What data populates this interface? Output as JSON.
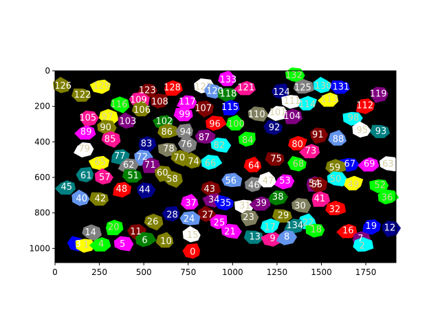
{
  "chart_data": {
    "type": "heatmap",
    "title": "",
    "xlabel": "",
    "ylabel": "",
    "xlim": [
      0,
      1920
    ],
    "ylim": [
      1080,
      0
    ],
    "xticks": [
      0,
      250,
      500,
      750,
      1000,
      1250,
      1500,
      1750
    ],
    "yticks": [
      0,
      200,
      400,
      600,
      800,
      1000
    ],
    "background": "#000000",
    "description_type": "segmentation label map",
    "regions": [
      {
        "label": "126",
        "x": 45,
        "y": 85,
        "color": "#808000"
      },
      {
        "label": "122",
        "x": 155,
        "y": 135,
        "color": "#808000"
      },
      {
        "label": "129",
        "x": 262,
        "y": 85,
        "color": "#ffff00"
      },
      {
        "label": "123",
        "x": 520,
        "y": 110,
        "color": "#800000"
      },
      {
        "label": "128",
        "x": 660,
        "y": 95,
        "color": "#ff0000"
      },
      {
        "label": "127",
        "x": 835,
        "y": 90,
        "color": "#ffffff"
      },
      {
        "label": "133",
        "x": 975,
        "y": 50,
        "color": "#ff00ff"
      },
      {
        "label": "120",
        "x": 900,
        "y": 115,
        "color": "#6495ed"
      },
      {
        "label": "118",
        "x": 975,
        "y": 130,
        "color": "#008000"
      },
      {
        "label": "121",
        "x": 1075,
        "y": 95,
        "color": "#ff1493"
      },
      {
        "label": "132",
        "x": 1345,
        "y": 25,
        "color": "#00ff00"
      },
      {
        "label": "125",
        "x": 1395,
        "y": 95,
        "color": "#808080"
      },
      {
        "label": "124",
        "x": 1275,
        "y": 120,
        "color": "#00008b"
      },
      {
        "label": "130",
        "x": 1510,
        "y": 85,
        "color": "#00ffff"
      },
      {
        "label": "131",
        "x": 1610,
        "y": 90,
        "color": "#0000ff"
      },
      {
        "label": "119",
        "x": 1820,
        "y": 130,
        "color": "#800080"
      },
      {
        "label": "116",
        "x": 360,
        "y": 190,
        "color": "#00ff00"
      },
      {
        "label": "109",
        "x": 470,
        "y": 165,
        "color": "#ff1493"
      },
      {
        "label": "108",
        "x": 590,
        "y": 175,
        "color": "#800000"
      },
      {
        "label": "106",
        "x": 490,
        "y": 220,
        "color": "#808000"
      },
      {
        "label": "117",
        "x": 745,
        "y": 175,
        "color": "#ff00ff"
      },
      {
        "label": "115",
        "x": 985,
        "y": 205,
        "color": "#0000ff"
      },
      {
        "label": "107",
        "x": 835,
        "y": 210,
        "color": "#800000"
      },
      {
        "label": "110",
        "x": 1135,
        "y": 245,
        "color": "#808060"
      },
      {
        "label": "114",
        "x": 1420,
        "y": 190,
        "color": "#00ffff"
      },
      {
        "label": "111",
        "x": 1335,
        "y": 170,
        "color": "#ffffff"
      },
      {
        "label": "113",
        "x": 1545,
        "y": 160,
        "color": "#ffff00"
      },
      {
        "label": "112",
        "x": 1745,
        "y": 195,
        "color": "#ff0000"
      },
      {
        "label": "105",
        "x": 185,
        "y": 265,
        "color": "#ff1493"
      },
      {
        "label": "97",
        "x": 295,
        "y": 260,
        "color": "#ffff00"
      },
      {
        "label": "103",
        "x": 410,
        "y": 285,
        "color": "#800080"
      },
      {
        "label": "99",
        "x": 730,
        "y": 245,
        "color": "#ff00ff"
      },
      {
        "label": "102",
        "x": 615,
        "y": 285,
        "color": "#008000"
      },
      {
        "label": "101",
        "x": 1255,
        "y": 235,
        "color": "#ffffff"
      },
      {
        "label": "104",
        "x": 1335,
        "y": 255,
        "color": "#800080"
      },
      {
        "label": "96",
        "x": 900,
        "y": 300,
        "color": "#ff0000"
      },
      {
        "label": "100",
        "x": 1020,
        "y": 300,
        "color": "#00ff00"
      },
      {
        "label": "92",
        "x": 1235,
        "y": 320,
        "color": "#000080"
      },
      {
        "label": "98",
        "x": 1680,
        "y": 265,
        "color": "#00ffff"
      },
      {
        "label": "89",
        "x": 175,
        "y": 345,
        "color": "#ff00ff"
      },
      {
        "label": "90",
        "x": 285,
        "y": 320,
        "color": "#808000"
      },
      {
        "label": "86",
        "x": 630,
        "y": 345,
        "color": "#808000"
      },
      {
        "label": "94",
        "x": 735,
        "y": 345,
        "color": "#808080"
      },
      {
        "label": "95",
        "x": 1730,
        "y": 335,
        "color": "#ffffff"
      },
      {
        "label": "93",
        "x": 1835,
        "y": 340,
        "color": "#008080"
      },
      {
        "label": "91",
        "x": 1480,
        "y": 360,
        "color": "#800000"
      },
      {
        "label": "85",
        "x": 310,
        "y": 385,
        "color": "#ff1493"
      },
      {
        "label": "87",
        "x": 840,
        "y": 375,
        "color": "#800080"
      },
      {
        "label": "84",
        "x": 1085,
        "y": 390,
        "color": "#00ff00"
      },
      {
        "label": "88",
        "x": 1595,
        "y": 385,
        "color": "#6495ed"
      },
      {
        "label": "79",
        "x": 165,
        "y": 440,
        "color": "#ffffff"
      },
      {
        "label": "83",
        "x": 515,
        "y": 410,
        "color": "#00008b"
      },
      {
        "label": "76",
        "x": 740,
        "y": 415,
        "color": "#808080"
      },
      {
        "label": "82",
        "x": 925,
        "y": 420,
        "color": "#00ffff"
      },
      {
        "label": "80",
        "x": 1365,
        "y": 415,
        "color": "#ff0000"
      },
      {
        "label": "78",
        "x": 640,
        "y": 440,
        "color": "#808060"
      },
      {
        "label": "73",
        "x": 1440,
        "y": 450,
        "color": "#ff1493"
      },
      {
        "label": "77",
        "x": 365,
        "y": 480,
        "color": "#008080"
      },
      {
        "label": "72",
        "x": 490,
        "y": 485,
        "color": "#6495ed"
      },
      {
        "label": "70",
        "x": 700,
        "y": 490,
        "color": "#808000"
      },
      {
        "label": "74",
        "x": 780,
        "y": 510,
        "color": "#808000"
      },
      {
        "label": "75",
        "x": 1245,
        "y": 495,
        "color": "#800000"
      },
      {
        "label": "65",
        "x": 255,
        "y": 515,
        "color": "#ffff00"
      },
      {
        "label": "62",
        "x": 415,
        "y": 530,
        "color": "#808080"
      },
      {
        "label": "71",
        "x": 535,
        "y": 530,
        "color": "#800080"
      },
      {
        "label": "66",
        "x": 875,
        "y": 520,
        "color": "#00ffff"
      },
      {
        "label": "64",
        "x": 1120,
        "y": 535,
        "color": "#ff0000"
      },
      {
        "label": "68",
        "x": 1370,
        "y": 525,
        "color": "#00ff00"
      },
      {
        "label": "67",
        "x": 1660,
        "y": 525,
        "color": "#0000ff"
      },
      {
        "label": "69",
        "x": 1770,
        "y": 525,
        "color": "#ff00ff"
      },
      {
        "label": "63",
        "x": 1875,
        "y": 525,
        "color": "#ffffff"
      },
      {
        "label": "59",
        "x": 1575,
        "y": 545,
        "color": "#808000"
      },
      {
        "label": "61",
        "x": 175,
        "y": 590,
        "color": "#008080"
      },
      {
        "label": "57",
        "x": 280,
        "y": 600,
        "color": "#ff1493"
      },
      {
        "label": "51",
        "x": 440,
        "y": 590,
        "color": "#008000"
      },
      {
        "label": "60",
        "x": 605,
        "y": 575,
        "color": "#808000"
      },
      {
        "label": "58",
        "x": 660,
        "y": 610,
        "color": "#808000"
      },
      {
        "label": "56",
        "x": 990,
        "y": 620,
        "color": "#6495ed"
      },
      {
        "label": "46",
        "x": 1120,
        "y": 645,
        "color": "#808080"
      },
      {
        "label": "47",
        "x": 1200,
        "y": 620,
        "color": "#ffffff"
      },
      {
        "label": "53",
        "x": 1295,
        "y": 620,
        "color": "#ff00ff"
      },
      {
        "label": "54",
        "x": 1460,
        "y": 635,
        "color": "#800080"
      },
      {
        "label": "55",
        "x": 1475,
        "y": 640,
        "color": "#800000"
      },
      {
        "label": "50",
        "x": 1580,
        "y": 610,
        "color": "#00ffff"
      },
      {
        "label": "49",
        "x": 1680,
        "y": 640,
        "color": "#ffff00"
      },
      {
        "label": "52",
        "x": 1830,
        "y": 645,
        "color": "#00ff00"
      },
      {
        "label": "45",
        "x": 65,
        "y": 655,
        "color": "#008080"
      },
      {
        "label": "48",
        "x": 375,
        "y": 665,
        "color": "#ff0000"
      },
      {
        "label": "44",
        "x": 505,
        "y": 670,
        "color": "#00008b"
      },
      {
        "label": "43",
        "x": 870,
        "y": 665,
        "color": "#800000"
      },
      {
        "label": "40",
        "x": 150,
        "y": 720,
        "color": "#6495ed"
      },
      {
        "label": "42",
        "x": 255,
        "y": 720,
        "color": "#808000"
      },
      {
        "label": "34",
        "x": 895,
        "y": 725,
        "color": "#800080"
      },
      {
        "label": "38",
        "x": 1255,
        "y": 710,
        "color": "#008000"
      },
      {
        "label": "41",
        "x": 1490,
        "y": 720,
        "color": "#ff1493"
      },
      {
        "label": "36",
        "x": 1870,
        "y": 715,
        "color": "#00ff00"
      },
      {
        "label": "37",
        "x": 765,
        "y": 745,
        "color": "#ff00ff"
      },
      {
        "label": "35",
        "x": 960,
        "y": 745,
        "color": "#0000ff"
      },
      {
        "label": "31",
        "x": 1070,
        "y": 760,
        "color": "#ffffff"
      },
      {
        "label": "39",
        "x": 1160,
        "y": 745,
        "color": "#800080"
      },
      {
        "label": "30",
        "x": 1380,
        "y": 760,
        "color": "#808060"
      },
      {
        "label": "32",
        "x": 1575,
        "y": 780,
        "color": "#ff0000"
      },
      {
        "label": "28",
        "x": 660,
        "y": 810,
        "color": "#00008b"
      },
      {
        "label": "27",
        "x": 860,
        "y": 810,
        "color": "#800000"
      },
      {
        "label": "29",
        "x": 1285,
        "y": 815,
        "color": "#808000"
      },
      {
        "label": "23",
        "x": 1090,
        "y": 825,
        "color": "#808060"
      },
      {
        "label": "26",
        "x": 550,
        "y": 850,
        "color": "#808000"
      },
      {
        "label": "24",
        "x": 755,
        "y": 835,
        "color": "#6495ed"
      },
      {
        "label": "25",
        "x": 925,
        "y": 855,
        "color": "#ff00ff"
      },
      {
        "label": "22",
        "x": 1425,
        "y": 855,
        "color": "#00ffff"
      },
      {
        "label": "134",
        "x": 1350,
        "y": 870,
        "color": "#008080"
      },
      {
        "label": "20",
        "x": 330,
        "y": 880,
        "color": "#00ff00"
      },
      {
        "label": "11",
        "x": 455,
        "y": 905,
        "color": "#800000"
      },
      {
        "label": "21",
        "x": 985,
        "y": 905,
        "color": "#ff00ff"
      },
      {
        "label": "17",
        "x": 1210,
        "y": 880,
        "color": "#00ffff"
      },
      {
        "label": "18",
        "x": 1470,
        "y": 895,
        "color": "#00ff00"
      },
      {
        "label": "16",
        "x": 1650,
        "y": 900,
        "color": "#ff0000"
      },
      {
        "label": "19",
        "x": 1780,
        "y": 875,
        "color": "#0000ff"
      },
      {
        "label": "12",
        "x": 1885,
        "y": 885,
        "color": "#00008b"
      },
      {
        "label": "14",
        "x": 200,
        "y": 910,
        "color": "#808080"
      },
      {
        "label": "15",
        "x": 775,
        "y": 925,
        "color": "#ffffff"
      },
      {
        "label": "13",
        "x": 1125,
        "y": 935,
        "color": "#008080"
      },
      {
        "label": "9",
        "x": 1225,
        "y": 945,
        "color": "#ff1493"
      },
      {
        "label": "8",
        "x": 1305,
        "y": 935,
        "color": "#6495ed"
      },
      {
        "label": "7",
        "x": 1720,
        "y": 945,
        "color": "#800080"
      },
      {
        "label": "6",
        "x": 505,
        "y": 955,
        "color": "#008000"
      },
      {
        "label": "10",
        "x": 625,
        "y": 960,
        "color": "#808000"
      },
      {
        "label": "3",
        "x": 130,
        "y": 975,
        "color": "#0000ff"
      },
      {
        "label": "1",
        "x": 175,
        "y": 980,
        "color": "#ffff00"
      },
      {
        "label": "4",
        "x": 260,
        "y": 975,
        "color": "#00ff00"
      },
      {
        "label": "5",
        "x": 380,
        "y": 975,
        "color": "#ff00ff"
      },
      {
        "label": "2",
        "x": 1730,
        "y": 985,
        "color": "#00ffff"
      },
      {
        "label": "0",
        "x": 775,
        "y": 1020,
        "color": "#ff0000"
      }
    ]
  }
}
